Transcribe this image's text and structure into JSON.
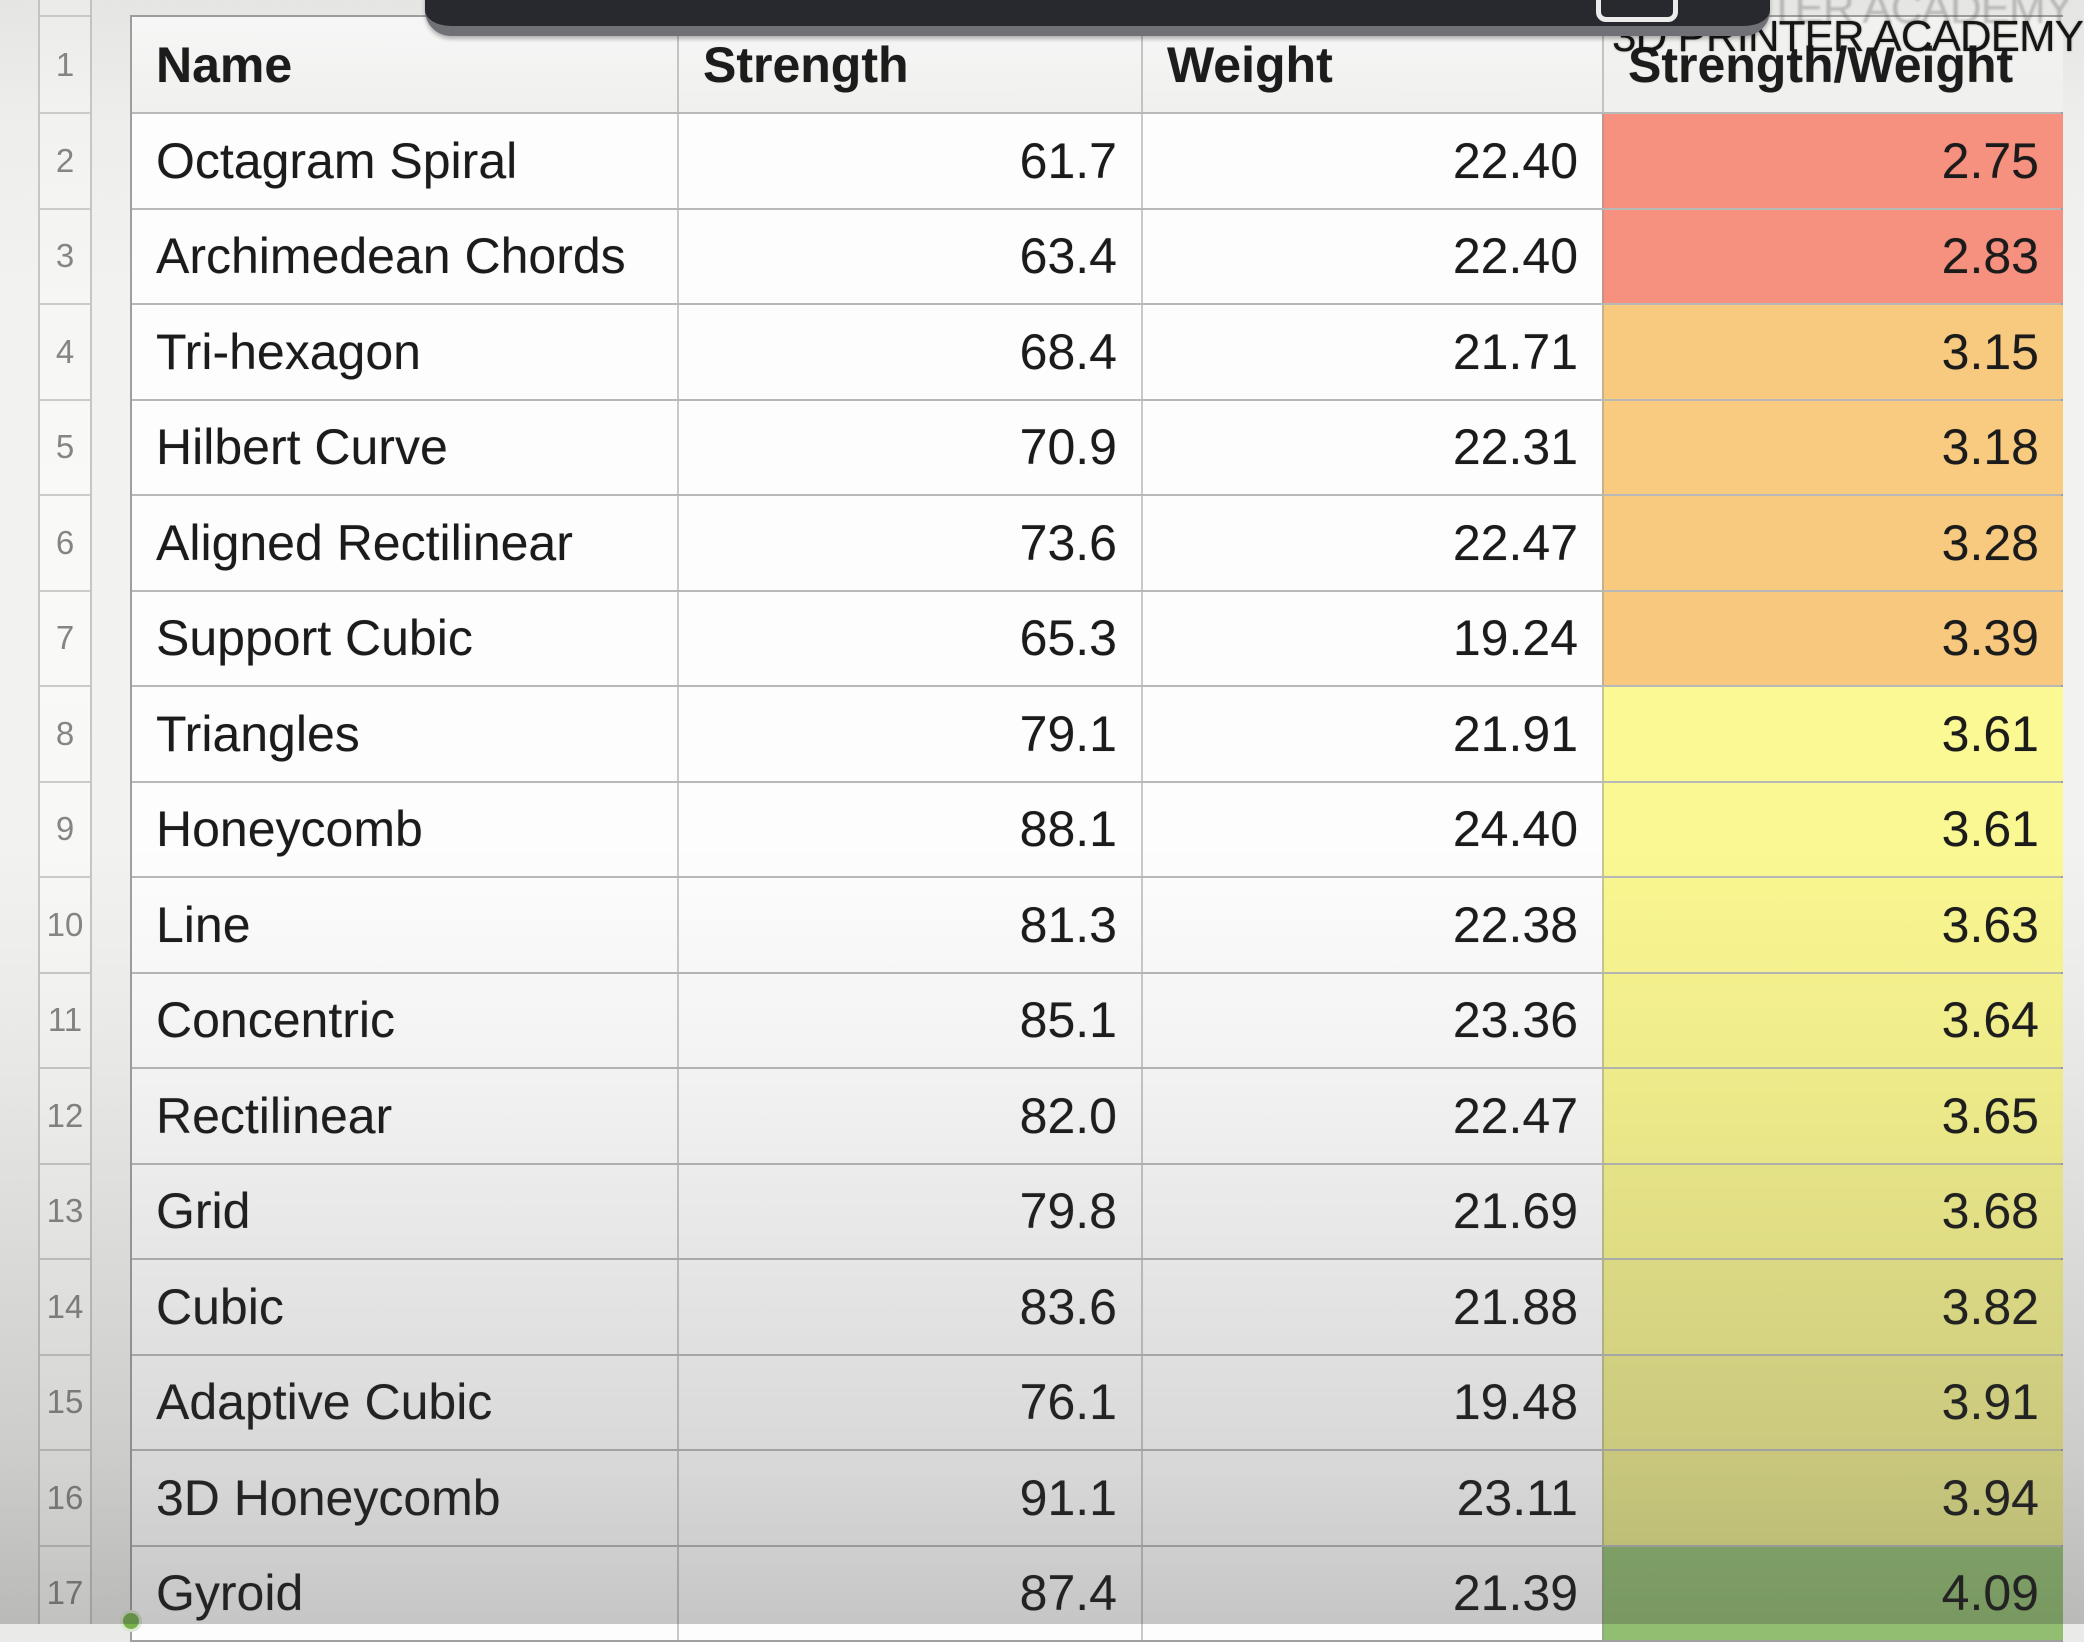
{
  "watermark": {
    "text": "3D PRINTER ACADEMY"
  },
  "spreadsheet": {
    "header": {
      "row_num": "1",
      "columns": {
        "name": "Name",
        "strength": "Strength",
        "weight": "Weight",
        "ratio": "Strength/Weight"
      }
    },
    "rows": [
      {
        "num": "2",
        "name": "Octagram Spiral",
        "strength": "61.7",
        "weight": "22.40",
        "ratio": "2.75",
        "ratio_color": "#f5917e"
      },
      {
        "num": "3",
        "name": "Archimedean Chords",
        "strength": "63.4",
        "weight": "22.40",
        "ratio": "2.83",
        "ratio_color": "#f5917e"
      },
      {
        "num": "4",
        "name": "Tri-hexagon",
        "strength": "68.4",
        "weight": "21.71",
        "ratio": "3.15",
        "ratio_color": "#f8ca80"
      },
      {
        "num": "5",
        "name": "Hilbert Curve",
        "strength": "70.9",
        "weight": "22.31",
        "ratio": "3.18",
        "ratio_color": "#f8cb81"
      },
      {
        "num": "6",
        "name": "Aligned Rectilinear",
        "strength": "73.6",
        "weight": "22.47",
        "ratio": "3.28",
        "ratio_color": "#f8ca80"
      },
      {
        "num": "7",
        "name": "Support Cubic",
        "strength": "65.3",
        "weight": "19.24",
        "ratio": "3.39",
        "ratio_color": "#f7c87e"
      },
      {
        "num": "8",
        "name": "Triangles",
        "strength": "79.1",
        "weight": "21.91",
        "ratio": "3.61",
        "ratio_color": "#fbf993"
      },
      {
        "num": "9",
        "name": "Honeycomb",
        "strength": "88.1",
        "weight": "24.40",
        "ratio": "3.61",
        "ratio_color": "#faf892"
      },
      {
        "num": "10",
        "name": "Line",
        "strength": "81.3",
        "weight": "22.38",
        "ratio": "3.63",
        "ratio_color": "#faf790"
      },
      {
        "num": "11",
        "name": "Concentric",
        "strength": "85.1",
        "weight": "23.36",
        "ratio": "3.64",
        "ratio_color": "#f9f68f"
      },
      {
        "num": "12",
        "name": "Rectilinear",
        "strength": "82.0",
        "weight": "22.47",
        "ratio": "3.65",
        "ratio_color": "#f8f58e"
      },
      {
        "num": "13",
        "name": "Grid",
        "strength": "79.8",
        "weight": "21.69",
        "ratio": "3.68",
        "ratio_color": "#f5f28d"
      },
      {
        "num": "14",
        "name": "Cubic",
        "strength": "83.6",
        "weight": "21.88",
        "ratio": "3.82",
        "ratio_color": "#f0ee8c"
      },
      {
        "num": "15",
        "name": "Adaptive Cubic",
        "strength": "76.1",
        "weight": "19.48",
        "ratio": "3.91",
        "ratio_color": "#ecea8b"
      },
      {
        "num": "16",
        "name": "3D Honeycomb",
        "strength": "91.1",
        "weight": "23.11",
        "ratio": "3.94",
        "ratio_color": "#e8e78a"
      },
      {
        "num": "17",
        "name": "Gyroid",
        "strength": "87.4",
        "weight": "21.39",
        "ratio": "4.09",
        "ratio_color": "#92be72"
      }
    ]
  }
}
